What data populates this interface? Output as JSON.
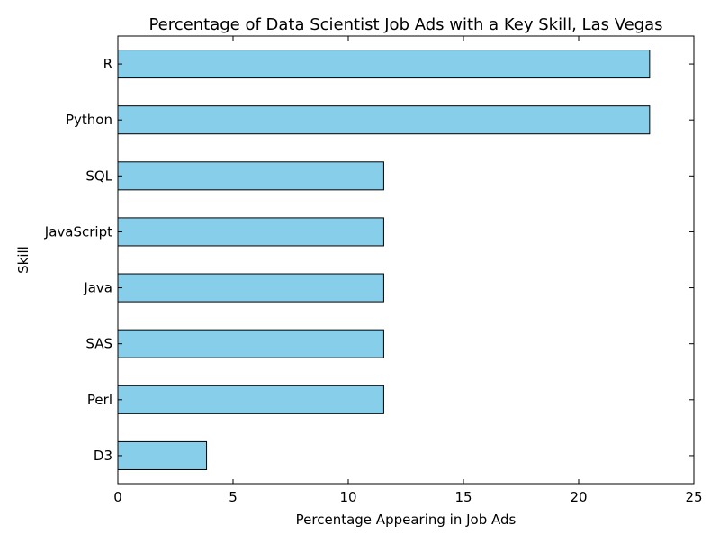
{
  "chart_data": {
    "type": "bar",
    "orientation": "horizontal",
    "title": "Percentage of Data Scientist Job Ads with a Key Skill, Las Vegas",
    "xlabel": "Percentage Appearing in Job Ads",
    "ylabel": "Skill",
    "xlim": [
      0,
      25
    ],
    "xticks": [
      0,
      5,
      10,
      15,
      20,
      25
    ],
    "categories": [
      "R",
      "Python",
      "SQL",
      "JavaScript",
      "Java",
      "SAS",
      "Perl",
      "D3"
    ],
    "values": [
      23.08,
      23.08,
      11.54,
      11.54,
      11.54,
      11.54,
      11.54,
      3.85
    ],
    "grid": false,
    "bar_color": "#87CEEB",
    "edge_color": "#000000"
  }
}
